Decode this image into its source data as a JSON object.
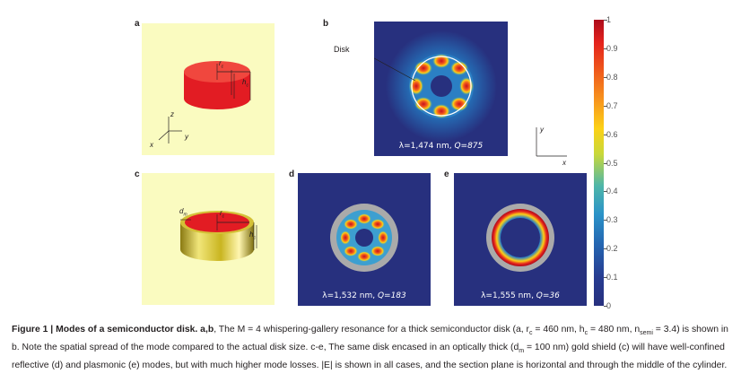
{
  "panels": {
    "a": {
      "label": "a",
      "r_label": "r",
      "r_sub": "c",
      "h_label": "h",
      "h_sub": "c",
      "z": "z",
      "x": "x",
      "y": "y"
    },
    "b": {
      "label": "b",
      "disk_label": "Disk",
      "caption_lambda": "λ=1,474 nm, ",
      "caption_q": "Q=875"
    },
    "c": {
      "label": "c",
      "d_label": "d",
      "d_sub": "m",
      "r_label": "r",
      "r_sub": "c",
      "h_label": "h",
      "h_sub": "c"
    },
    "d": {
      "label": "d",
      "caption_lambda": "λ=1,532 nm, ",
      "caption_q": "Q=183"
    },
    "e": {
      "label": "e",
      "caption_lambda": "λ=1,555 nm, ",
      "caption_q": "Q=36"
    },
    "axes_b": {
      "y": "y",
      "x": "x"
    }
  },
  "colorbar": {
    "ticks": [
      "1",
      "0.9",
      "0.8",
      "0.7",
      "0.6",
      "0.5",
      "0.4",
      "0.3",
      "0.2",
      "0.1",
      "0"
    ]
  },
  "colors": {
    "disk_red": "#e21c23",
    "field_dark": "#27307e",
    "gold": "#c9b520",
    "background_yellow": "#fafbc0"
  },
  "caption": {
    "title": "Figure 1 | Modes of a semiconductor disk.",
    "p1": " a,b",
    "p2": ", The M = 4 whispering-gallery resonance for a thick semiconductor disk (a, r",
    "p3": "c",
    "p4": " = 460 nm, h",
    "p5": "c",
    "p6": " = 480 nm, n",
    "p7": "semi",
    "p8": " = 3.4) is shown in b. Note the spatial spread of the mode compared to the actual disk size. c-e, The same disk encased in an optically thick (d",
    "p9": "m",
    "p10": " = 100 nm) gold shield (c) will have well-confined reflective (d) and plasmonic (e) modes, but with much higher mode losses. |E| is shown in all cases, and the section plane is horizontal and through the middle of the cylinder."
  }
}
